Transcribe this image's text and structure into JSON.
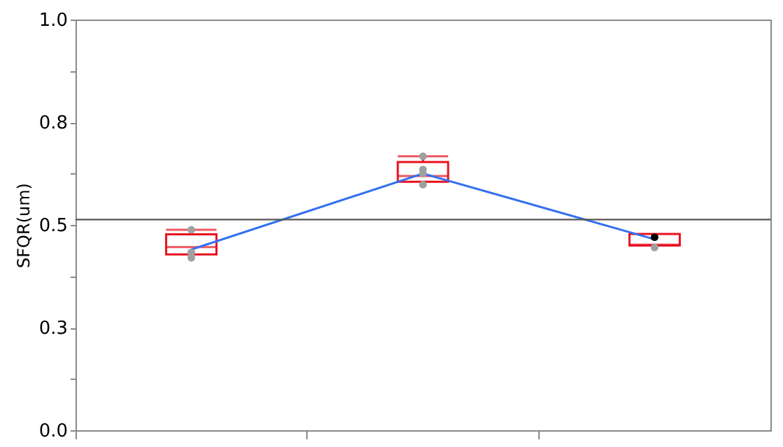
{
  "chart_data": {
    "type": "box",
    "ylabel": "SFQR(um)",
    "categories": [
      null,
      null,
      null
    ],
    "boxes": [
      {
        "low": 0.42,
        "q1": 0.428,
        "median": 0.446,
        "q3": 0.477,
        "high": 0.488
      },
      {
        "low": 0.598,
        "q1": 0.605,
        "median": 0.619,
        "q3": 0.653,
        "high": 0.667
      },
      {
        "low": 0.445,
        "q1": 0.45,
        "median": 0.452,
        "q3": 0.478,
        "high": 0.478
      }
    ],
    "color": "#e8101e",
    "series": [
      {
        "type": "line",
        "color": "#3370f0",
        "values": [
          0.44,
          0.625,
          0.465
        ],
        "marker": "none"
      },
      {
        "type": "scatter",
        "color": "#a0a0a0",
        "values": [
          0.488,
          0.667,
          null
        ],
        "marker": "circle"
      },
      {
        "type": "scatter",
        "color": "#a0a0a0",
        "values": [
          null,
          0.635,
          0.445
        ],
        "marker": "circle"
      },
      {
        "type": "scatter",
        "color": "#a0a0a0",
        "values": [
          0.433,
          0.625,
          null
        ],
        "marker": "circle"
      },
      {
        "type": "scatter",
        "color": "#a0a0a0",
        "values": [
          0.42,
          0.598,
          null
        ],
        "marker": "circle"
      },
      {
        "type": "scatter",
        "color": "#000000",
        "values": [
          null,
          null,
          0.47
        ],
        "marker": "circle"
      }
    ],
    "ref_lines": [
      {
        "axis": "y",
        "value": 0.513,
        "color": "#555555"
      }
    ],
    "ylim": [
      0,
      1
    ],
    "yticks": [
      {
        "value": 0,
        "label": "0.0"
      },
      {
        "value": 0.125,
        "label": null
      },
      {
        "value": 0.25,
        "label": "0.3"
      },
      {
        "value": 0.375,
        "label": null
      },
      0.5,
      {
        "value": 0.625,
        "label": null
      },
      {
        "value": 0.75,
        "label": "0.8"
      },
      {
        "value": 0.875,
        "label": null
      },
      {
        "value": 1,
        "label": "1.0"
      }
    ],
    "grid": false
  }
}
